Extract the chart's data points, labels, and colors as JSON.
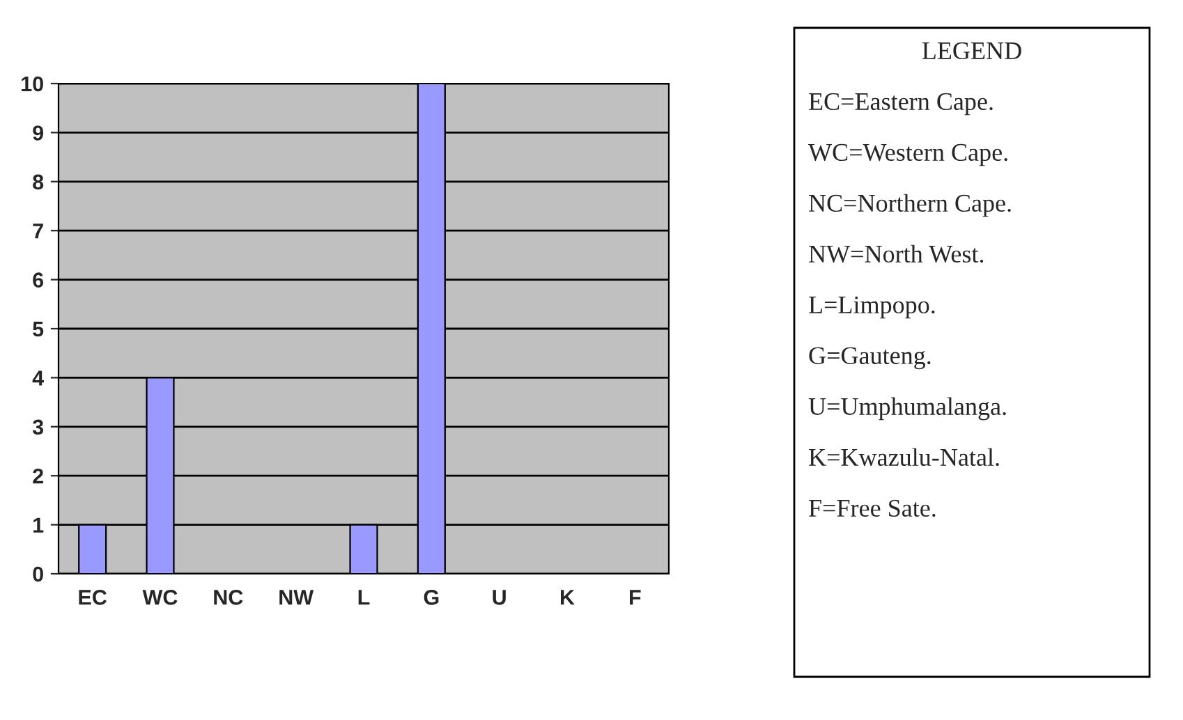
{
  "chart_data": {
    "type": "bar",
    "categories": [
      "EC",
      "WC",
      "NC",
      "NW",
      "L",
      "G",
      "U",
      "K",
      "F"
    ],
    "values": [
      1,
      4,
      0,
      0,
      1,
      10,
      0,
      0,
      0
    ],
    "color": "#9999ff",
    "ylim": [
      0,
      10
    ],
    "yticks": [
      0,
      1,
      2,
      3,
      4,
      5,
      6,
      7,
      8,
      9,
      10
    ],
    "grid": "y",
    "legend": false,
    "annotations": [
      "LEGEND",
      "EC=Eastern Cape.",
      "WC=Western Cape.",
      "NC=Northern Cape.",
      "NW=North West.",
      "L=Limpopo.",
      "G=Gauteng.",
      "U=Umphumalanga.",
      "K=Kwazulu-Natal.",
      "F=Free Sate."
    ]
  }
}
